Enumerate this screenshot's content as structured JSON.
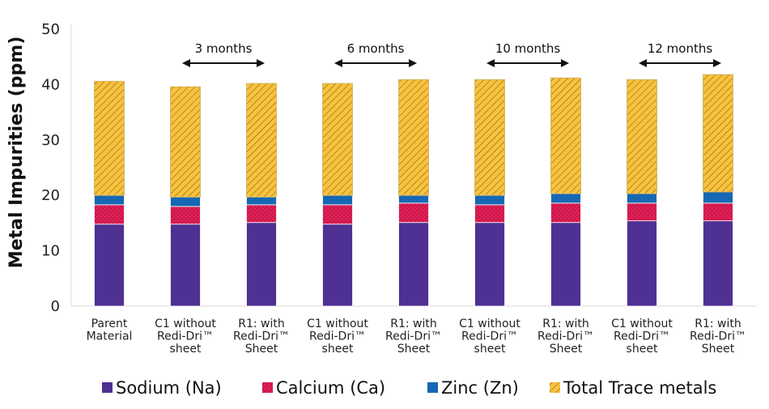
{
  "chart_data": {
    "type": "bar",
    "stacked": true,
    "ylabel": "Metal Impurities (ppm)",
    "ylim": [
      0,
      50
    ],
    "yticks": [
      0,
      10,
      20,
      30,
      40,
      50
    ],
    "grid": false,
    "legend_position": "bottom",
    "categories": [
      [
        "Parent",
        "Material"
      ],
      [
        "C1 without",
        "Redi-Dri™",
        "sheet"
      ],
      [
        "R1: with",
        "Redi-Dri™",
        "Sheet"
      ],
      [
        "C1 without",
        "Redi-Dri™",
        "sheet"
      ],
      [
        "R1: with",
        "Redi-Dri™",
        "Sheet"
      ],
      [
        "C1 without",
        "Redi-Dri™",
        "sheet"
      ],
      [
        "R1: with",
        "Redi-Dri™",
        "Sheet"
      ],
      [
        "C1 without",
        "Redi-Dri™",
        "sheet"
      ],
      [
        "R1: with",
        "Redi-Dri™",
        "Sheet"
      ]
    ],
    "series": [
      {
        "name": "Sodium (Na)",
        "color": "#4f3093",
        "pattern": "solid",
        "values": [
          14.8,
          14.8,
          15.1,
          14.8,
          15.1,
          15.1,
          15.1,
          15.4,
          15.4
        ]
      },
      {
        "name": "Calcium (Ca)",
        "color": "#e5225a",
        "pattern": "crosshatch",
        "values": [
          3.5,
          3.2,
          3.2,
          3.5,
          3.5,
          3.2,
          3.5,
          3.2,
          3.2
        ]
      },
      {
        "name": "Zinc (Zn)",
        "color": "#1668b5",
        "pattern": "solid",
        "values": [
          1.7,
          1.7,
          1.4,
          1.7,
          1.4,
          1.7,
          1.7,
          1.7,
          2.0
        ]
      },
      {
        "name": "Total Trace metals",
        "color": "#f9c23c",
        "pattern": "diagonal",
        "values": [
          20.6,
          19.9,
          20.5,
          20.2,
          20.9,
          20.9,
          20.9,
          20.6,
          21.2
        ]
      }
    ],
    "annotations": [
      {
        "label": "3 months",
        "from": 1,
        "to": 2
      },
      {
        "label": "6 months",
        "from": 3,
        "to": 4
      },
      {
        "label": "10 months",
        "from": 5,
        "to": 6
      },
      {
        "label": "12 months",
        "from": 7,
        "to": 8
      }
    ]
  }
}
